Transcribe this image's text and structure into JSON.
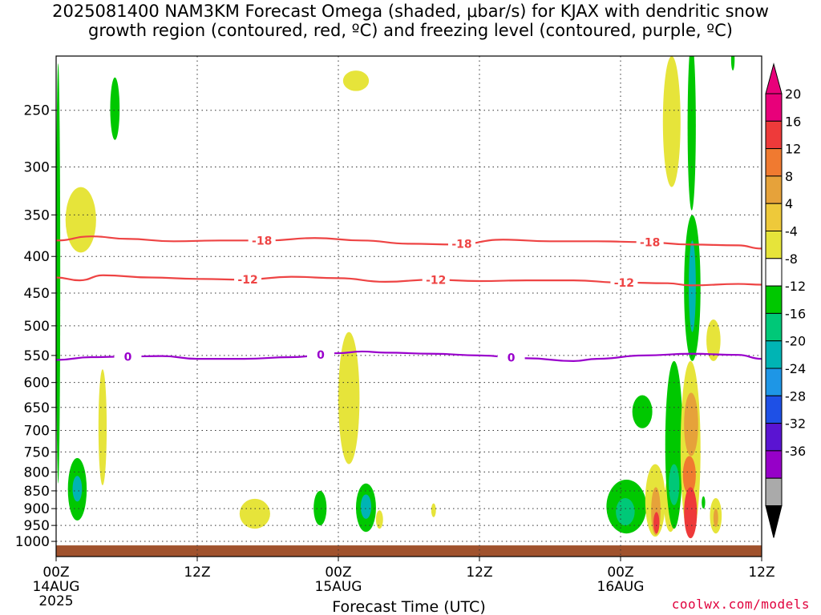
{
  "title": {
    "line1": "2025081400 NAM3KM Forecast Omega (shaded, μbar/s) for KJAX with dendritic snow",
    "line2": "growth region (contoured, red, ºC) and freezing level (contoured, purple, ºC)"
  },
  "footer": {
    "credit": "coolwx.com/models"
  },
  "chart_data": {
    "type": "time-height cross section",
    "xlabel": "Forecast Time (UTC)",
    "ylabel": "",
    "x_ticks": [
      {
        "hour": 0,
        "label": "00Z",
        "sub1": "14AUG",
        "sub2": "2025"
      },
      {
        "hour": 12,
        "label": "12Z",
        "sub1": "",
        "sub2": ""
      },
      {
        "hour": 24,
        "label": "00Z",
        "sub1": "15AUG",
        "sub2": ""
      },
      {
        "hour": 36,
        "label": "12Z",
        "sub1": "",
        "sub2": ""
      },
      {
        "hour": 48,
        "label": "00Z",
        "sub1": "16AUG",
        "sub2": ""
      },
      {
        "hour": 60,
        "label": "12Z",
        "sub1": "",
        "sub2": ""
      }
    ],
    "xlim_hours": [
      0,
      60
    ],
    "y_ticks_hpa": [
      250,
      300,
      350,
      400,
      450,
      500,
      550,
      600,
      650,
      700,
      750,
      800,
      850,
      900,
      950,
      1000
    ],
    "ylim_hpa": [
      1050,
      210
    ],
    "grid": true,
    "colorbar": {
      "labels": [
        "20",
        "16",
        "12",
        "8",
        "4",
        "-4",
        "-8",
        "-12",
        "-16",
        "-20",
        "-24",
        "-28",
        "-32",
        "-36"
      ],
      "colors": [
        "#e8007a",
        "#ee3a3a",
        "#f07a30",
        "#e6a23a",
        "#eec93a",
        "#e6e43a",
        "#ffffff",
        "#00c800",
        "#00c878",
        "#00b4b4",
        "#1e96e6",
        "#1e50e6",
        "#5a14d2",
        "#9600c8",
        "#aaaaaa"
      ],
      "top_color": "#e8007a",
      "bottom_color": "#000000"
    },
    "contours": [
      {
        "label": "-18",
        "color": "#ee4444",
        "points": [
          [
            0,
            380
          ],
          [
            3,
            375
          ],
          [
            6,
            378
          ],
          [
            10,
            381
          ],
          [
            14,
            380
          ],
          [
            18,
            380
          ],
          [
            22,
            377
          ],
          [
            26,
            380
          ],
          [
            30,
            384
          ],
          [
            34,
            385
          ],
          [
            38,
            379
          ],
          [
            42,
            381
          ],
          [
            46,
            381
          ],
          [
            50,
            382
          ],
          [
            54,
            385
          ],
          [
            58,
            386
          ],
          [
            60,
            390
          ]
        ],
        "label_hours": [
          17.5,
          34.5,
          50.5
        ]
      },
      {
        "label": "-12",
        "color": "#ee4444",
        "points": [
          [
            0,
            428
          ],
          [
            2,
            432
          ],
          [
            4,
            425
          ],
          [
            8,
            428
          ],
          [
            12,
            430
          ],
          [
            16,
            431
          ],
          [
            20,
            427
          ],
          [
            24,
            429
          ],
          [
            28,
            434
          ],
          [
            32,
            431
          ],
          [
            36,
            433
          ],
          [
            40,
            432
          ],
          [
            44,
            432
          ],
          [
            48,
            435
          ],
          [
            52,
            436
          ],
          [
            54,
            439
          ],
          [
            58,
            437
          ],
          [
            60,
            438
          ]
        ],
        "label_hours": [
          16.3,
          32.3,
          48.3
        ]
      },
      {
        "label": "0",
        "color": "#9900cc",
        "points": [
          [
            0,
            558
          ],
          [
            3,
            553
          ],
          [
            6,
            552
          ],
          [
            9,
            551
          ],
          [
            12,
            556
          ],
          [
            16,
            556
          ],
          [
            20,
            553
          ],
          [
            24,
            546
          ],
          [
            26,
            543
          ],
          [
            28,
            545
          ],
          [
            32,
            547
          ],
          [
            36,
            550
          ],
          [
            40,
            555
          ],
          [
            44,
            560
          ],
          [
            46,
            556
          ],
          [
            50,
            550
          ],
          [
            54,
            547
          ],
          [
            58,
            549
          ],
          [
            60,
            556
          ]
        ],
        "label_hours": [
          6.1,
          22.5,
          38.7
        ]
      }
    ],
    "omega_features": [
      {
        "h0": 0.0,
        "h1": 0.35,
        "p0": 215,
        "p1": 830,
        "value": -6
      },
      {
        "h0": 0.8,
        "h1": 3.4,
        "p0": 320,
        "p1": 395,
        "value": 5
      },
      {
        "h0": 4.6,
        "h1": 5.4,
        "p0": 225,
        "p1": 275,
        "value": -6
      },
      {
        "h0": 3.6,
        "h1": 4.3,
        "p0": 575,
        "p1": 835,
        "value": 5
      },
      {
        "h0": 1.0,
        "h1": 2.6,
        "p0": 765,
        "p1": 935,
        "value": -7
      },
      {
        "h0": 1.4,
        "h1": 2.2,
        "p0": 810,
        "p1": 880,
        "value": -12
      },
      {
        "h0": 15.6,
        "h1": 18.2,
        "p0": 872,
        "p1": 960,
        "value": 5
      },
      {
        "h0": 21.9,
        "h1": 23.0,
        "p0": 850,
        "p1": 950,
        "value": -6
      },
      {
        "h0": 24.4,
        "h1": 26.6,
        "p0": 235,
        "p1": 220,
        "value": 5
      },
      {
        "h0": 24.0,
        "h1": 25.8,
        "p0": 510,
        "p1": 780,
        "value": 5
      },
      {
        "h0": 25.5,
        "h1": 27.2,
        "p0": 830,
        "p1": 970,
        "value": -7
      },
      {
        "h0": 25.9,
        "h1": 26.8,
        "p0": 860,
        "p1": 930,
        "value": -14
      },
      {
        "h0": 27.2,
        "h1": 27.8,
        "p0": 905,
        "p1": 960,
        "value": 5
      },
      {
        "h0": 31.9,
        "h1": 32.3,
        "p0": 885,
        "p1": 925,
        "value": 5
      },
      {
        "h0": 46.8,
        "h1": 50.2,
        "p0": 820,
        "p1": 975,
        "value": -7
      },
      {
        "h0": 47.6,
        "h1": 49.2,
        "p0": 870,
        "p1": 950,
        "value": -10
      },
      {
        "h0": 49.0,
        "h1": 50.7,
        "p0": 625,
        "p1": 695,
        "value": -6
      },
      {
        "h0": 51.6,
        "h1": 53.1,
        "p0": 210,
        "p1": 320,
        "value": 5
      },
      {
        "h0": 50.1,
        "h1": 51.8,
        "p0": 780,
        "p1": 985,
        "value": 6
      },
      {
        "h0": 50.6,
        "h1": 51.4,
        "p0": 840,
        "p1": 980,
        "value": 10
      },
      {
        "h0": 50.8,
        "h1": 51.3,
        "p0": 910,
        "p1": 975,
        "value": 16
      },
      {
        "h0": 51.7,
        "h1": 52.8,
        "p0": 810,
        "p1": 970,
        "value": 5
      },
      {
        "h0": 51.8,
        "h1": 53.3,
        "p0": 560,
        "p1": 960,
        "value": -6
      },
      {
        "h0": 52.1,
        "h1": 53.0,
        "p0": 780,
        "p1": 890,
        "value": -10
      },
      {
        "h0": 53.1,
        "h1": 54.8,
        "p0": 560,
        "p1": 990,
        "value": 6
      },
      {
        "h0": 53.4,
        "h1": 54.6,
        "p0": 620,
        "p1": 760,
        "value": 10
      },
      {
        "h0": 53.3,
        "h1": 54.4,
        "p0": 760,
        "p1": 860,
        "value": 13
      },
      {
        "h0": 53.4,
        "h1": 54.5,
        "p0": 840,
        "p1": 990,
        "value": 18
      },
      {
        "h0": 53.7,
        "h1": 54.4,
        "p0": 200,
        "p1": 345,
        "value": -6
      },
      {
        "h0": 53.4,
        "h1": 54.8,
        "p0": 350,
        "p1": 560,
        "value": -7
      },
      {
        "h0": 53.8,
        "h1": 54.4,
        "p0": 380,
        "p1": 510,
        "value": -12
      },
      {
        "h0": 55.3,
        "h1": 56.5,
        "p0": 490,
        "p1": 560,
        "value": 5
      },
      {
        "h0": 55.6,
        "h1": 56.6,
        "p0": 870,
        "p1": 975,
        "value": 5
      },
      {
        "h0": 55.9,
        "h1": 56.3,
        "p0": 900,
        "p1": 955,
        "value": 9
      },
      {
        "h0": 54.9,
        "h1": 55.2,
        "p0": 865,
        "p1": 900,
        "value": -6
      },
      {
        "h0": 57.4,
        "h1": 57.7,
        "p0": 205,
        "p1": 220,
        "value": -6
      }
    ],
    "terrain_hpa": 1013
  }
}
